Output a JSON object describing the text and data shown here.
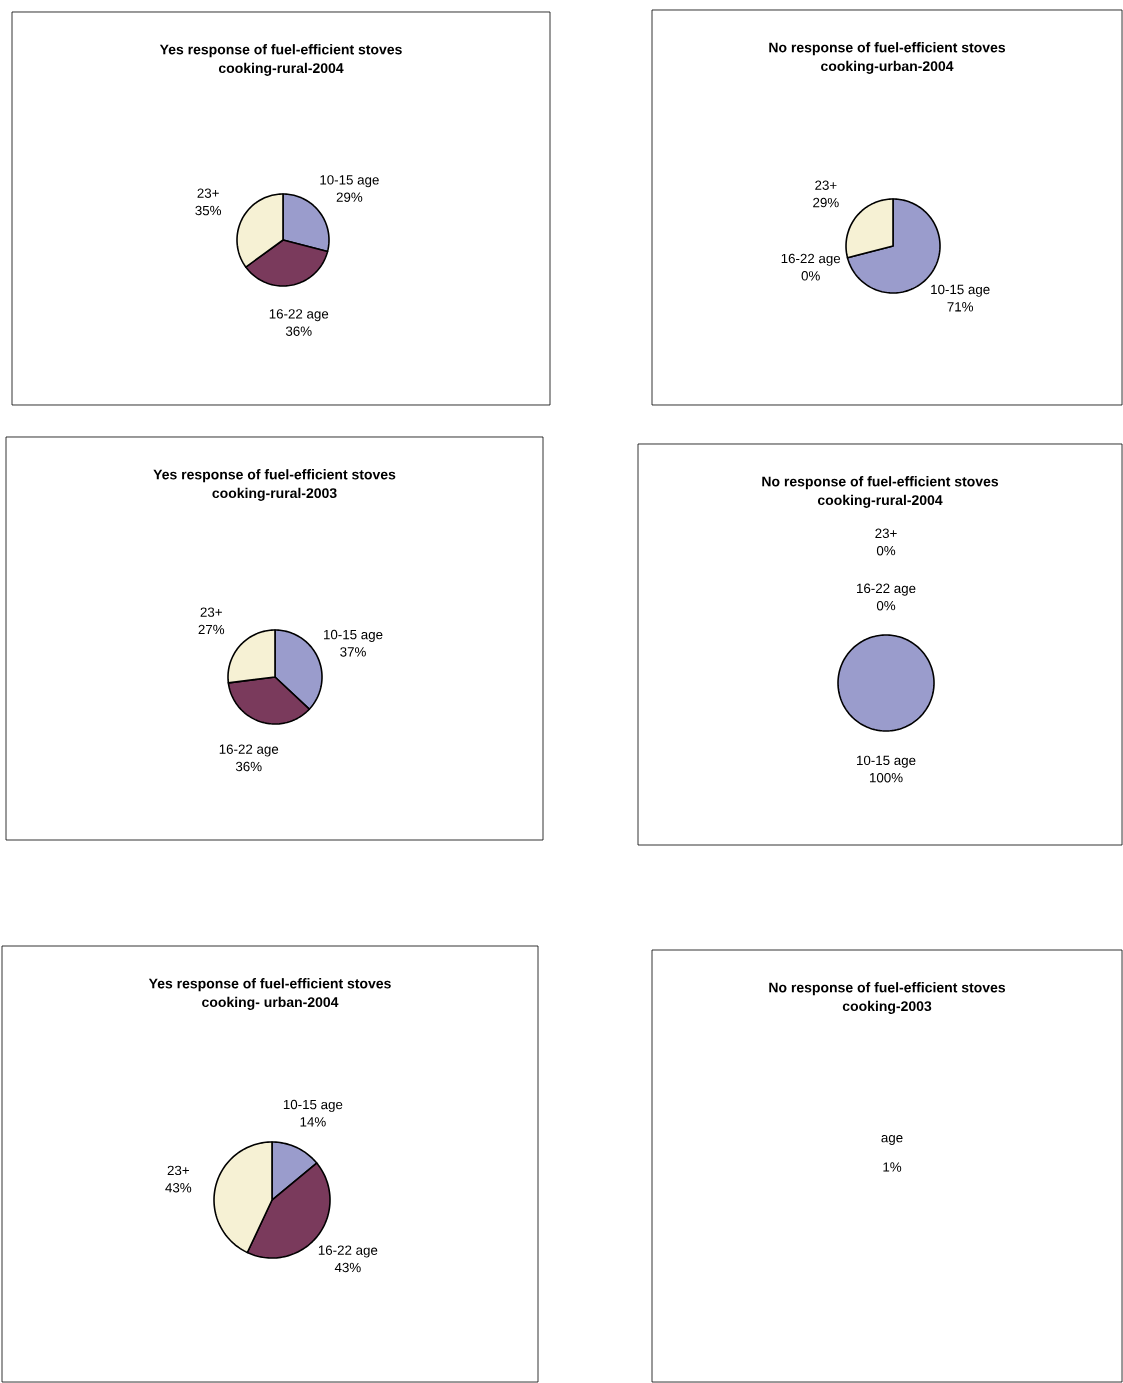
{
  "chart_data": [
    {
      "type": "pie",
      "title": "Yes response of fuel-efficient stoves",
      "subtitle": "cooking-rural-2004",
      "categories": [
        "10-15 age",
        "16-22 age",
        "23+"
      ],
      "values": [
        29,
        36,
        35
      ],
      "value_labels": [
        "29%",
        "36%",
        "35%"
      ],
      "colors": [
        "#9a9ccc",
        "#7a3a5c",
        "#f6f1d4"
      ]
    },
    {
      "type": "pie",
      "title": "No response of fuel-efficient stoves",
      "subtitle": "cooking-urban-2004",
      "categories": [
        "10-15 age",
        "16-22 age",
        "23+"
      ],
      "values": [
        71,
        0,
        29
      ],
      "value_labels": [
        "71%",
        "0%",
        "29%"
      ],
      "colors": [
        "#9a9ccc",
        "#7a3a5c",
        "#f6f1d4"
      ]
    },
    {
      "type": "pie",
      "title": "Yes response of fuel-efficient stoves",
      "subtitle": "cooking-rural-2003",
      "categories": [
        "10-15 age",
        "16-22 age",
        "23+"
      ],
      "values": [
        37,
        36,
        27
      ],
      "value_labels": [
        "37%",
        "36%",
        "27%"
      ],
      "colors": [
        "#9a9ccc",
        "#7a3a5c",
        "#f6f1d4"
      ]
    },
    {
      "type": "pie",
      "title": "No response of fuel-efficient stoves",
      "subtitle": "cooking-rural-2004",
      "categories": [
        "10-15 age",
        "16-22 age",
        "23+"
      ],
      "values": [
        100,
        0,
        0
      ],
      "value_labels": [
        "100%",
        "0%",
        "0%"
      ],
      "colors": [
        "#9a9ccc",
        "#7a3a5c",
        "#f6f1d4"
      ]
    },
    {
      "type": "pie",
      "title": "Yes response of fuel-efficient stoves",
      "subtitle": "cooking- urban-2004",
      "categories": [
        "10-15 age",
        "16-22 age",
        "23+"
      ],
      "values": [
        14,
        43,
        43
      ],
      "value_labels": [
        "14%",
        "43%",
        "43%"
      ],
      "colors": [
        "#9a9ccc",
        "#7a3a5c",
        "#f6f1d4"
      ]
    },
    {
      "type": "other",
      "title": "No response of fuel-efficient stoves",
      "subtitle": "cooking-2003",
      "annotations": [
        "age",
        "1%"
      ]
    }
  ]
}
